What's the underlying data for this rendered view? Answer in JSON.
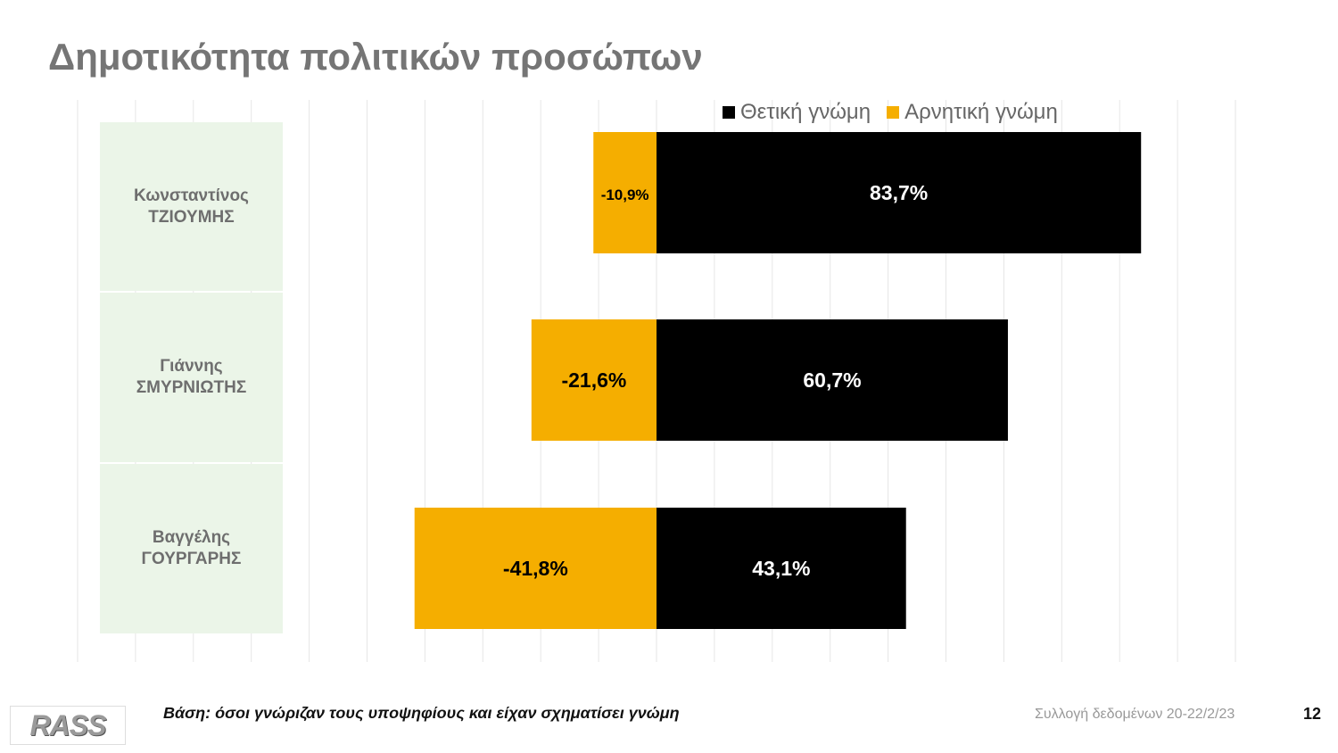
{
  "title": "Δημοτικότητα πολιτικών προσώπων",
  "chart_data": {
    "type": "bar",
    "orientation": "horizontal-diverging",
    "categories": [
      "Κωνσταντίνος ΤΖΙΟΥΜΗΣ",
      "Γιάννης ΣΜΥΡΝΙΩΤΗΣ",
      "Βαγγέλης ΓΟΥΡΓΑΡΗΣ"
    ],
    "category_lines": [
      [
        "Κωνσταντίνος",
        "ΤΖΙΟΥΜΗΣ"
      ],
      [
        "Γιάννης",
        "ΣΜΥΡΝΙΩΤΗΣ"
      ],
      [
        "Βαγγέλης",
        "ΓΟΥΡΓΑΡΗΣ"
      ]
    ],
    "series": [
      {
        "name": "Θετική γνώμη",
        "color": "#000000",
        "values": [
          83.7,
          60.7,
          43.1
        ],
        "labels": [
          "83,7%",
          "60,7%",
          "43,1%"
        ]
      },
      {
        "name": "Αρνητική γνώμη",
        "color": "#F5AE00",
        "values": [
          -10.9,
          -21.6,
          -41.8
        ],
        "labels": [
          "-10,9%",
          "-21,6%",
          "-41,8%"
        ]
      }
    ],
    "xlim": [
      -100,
      100
    ],
    "grid": true,
    "legend": "top-right"
  },
  "footer": {
    "base_note": "Βάση: όσοι γνώριζαν τους υποψηφίους και είχαν σχηματίσει γνώμη",
    "date": "Συλλογή δεδομένων 20-22/2/23",
    "page": "12",
    "logo": "RASS"
  }
}
